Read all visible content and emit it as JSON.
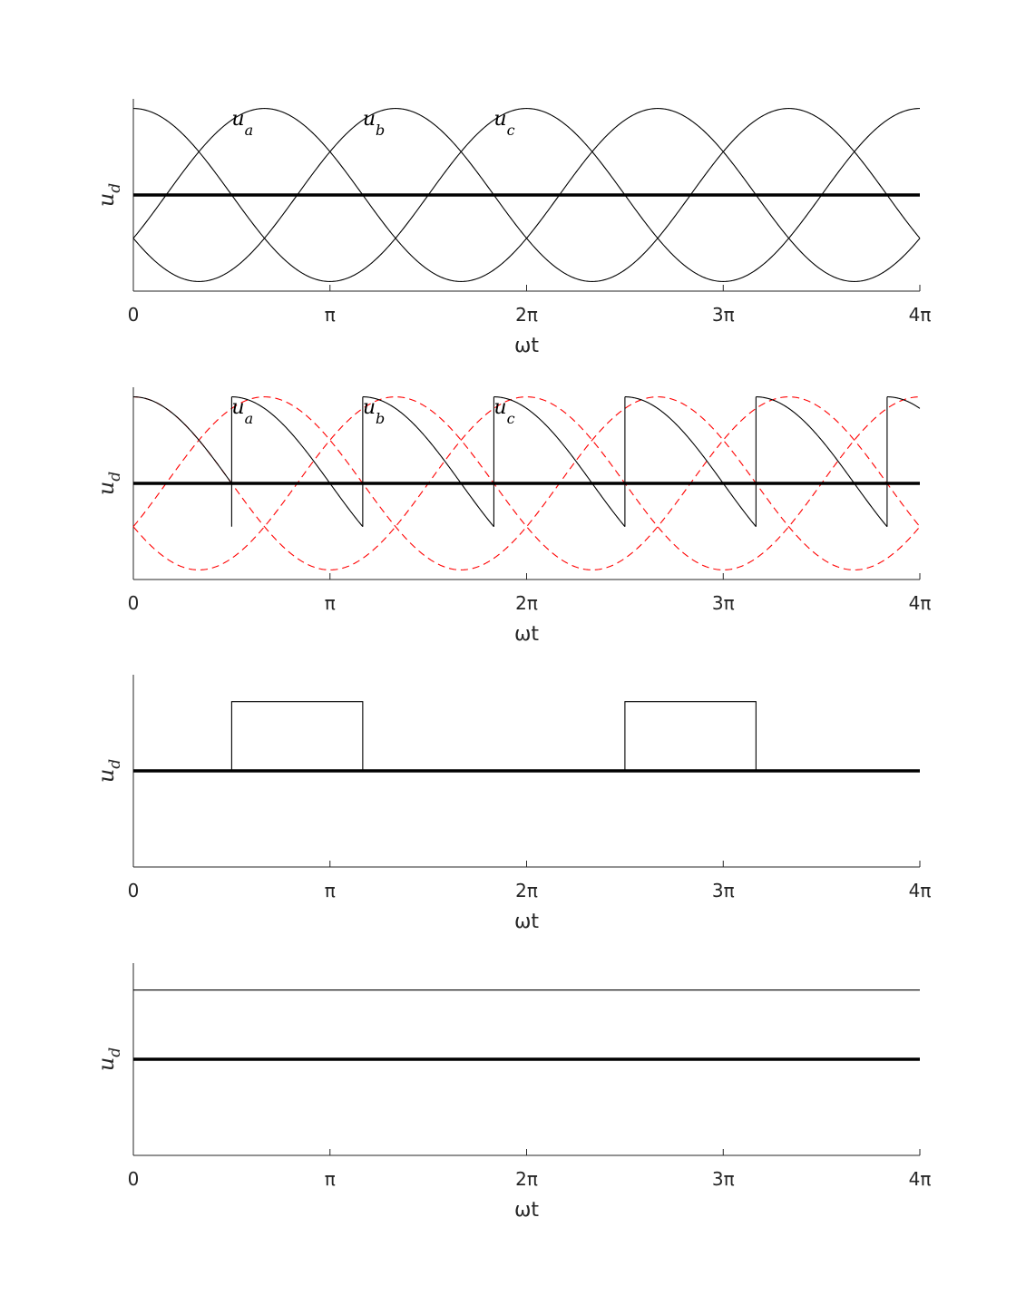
{
  "chart_data": [
    {
      "type": "line",
      "xlabel": "ωt",
      "ylabel": {
        "main": "u",
        "sub": "d"
      },
      "xlim": [
        0,
        12.566
      ],
      "ylim": [
        -1,
        1
      ],
      "x_ticks": [
        "0",
        "π",
        "2π",
        "3π",
        "4π"
      ],
      "x_tick_values": [
        0,
        3.1416,
        6.2832,
        9.4248,
        12.566
      ],
      "series": [
        {
          "name": "u_a",
          "kind": "sine",
          "amplitude": 0.9,
          "phase_deg": 0,
          "color": "#000000",
          "style": "solid"
        },
        {
          "name": "u_b",
          "kind": "sine",
          "amplitude": 0.9,
          "phase_deg": -120,
          "color": "#000000",
          "style": "solid"
        },
        {
          "name": "u_c",
          "kind": "sine",
          "amplitude": 0.9,
          "phase_deg": 120,
          "color": "#000000",
          "style": "solid"
        },
        {
          "kind": "zero",
          "color": "#000000",
          "style": "bold"
        }
      ],
      "annotations": [
        {
          "main": "u",
          "sub": "a",
          "x": 1.571
        },
        {
          "main": "u",
          "sub": "b",
          "x": 3.665
        },
        {
          "main": "u",
          "sub": "c",
          "x": 5.76
        }
      ]
    },
    {
      "type": "line",
      "xlabel": "ωt",
      "ylabel": {
        "main": "u",
        "sub": "d"
      },
      "xlim": [
        0,
        12.566
      ],
      "ylim": [
        -1,
        1
      ],
      "x_ticks": [
        "0",
        "π",
        "2π",
        "3π",
        "4π"
      ],
      "x_tick_values": [
        0,
        3.1416,
        6.2832,
        9.4248,
        12.566
      ],
      "series": [
        {
          "kind": "phase_sines",
          "amplitude": 0.9,
          "phases_deg": [
            0,
            -120,
            120
          ],
          "color": "#ff0000",
          "style": "dashed"
        },
        {
          "kind": "sawtooth",
          "amplitude": 0.9,
          "switch_points": [
            1.571,
            3.665,
            5.76,
            7.854,
            9.948,
            12.043
          ],
          "color": "#000000",
          "style": "solid"
        },
        {
          "kind": "zero",
          "color": "#000000",
          "style": "bold"
        }
      ],
      "annotations": [
        {
          "main": "u",
          "sub": "a",
          "x": 1.571
        },
        {
          "main": "u",
          "sub": "b",
          "x": 3.665
        },
        {
          "main": "u",
          "sub": "c",
          "x": 5.76
        }
      ]
    },
    {
      "type": "line",
      "xlabel": "ωt",
      "ylabel": {
        "main": "u",
        "sub": "d"
      },
      "xlim": [
        0,
        12.566
      ],
      "ylim": [
        -1,
        1
      ],
      "x_ticks": [
        "0",
        "π",
        "2π",
        "3π",
        "4π"
      ],
      "x_tick_values": [
        0,
        3.1416,
        6.2832,
        9.4248,
        12.566
      ],
      "series": [
        {
          "kind": "pulses",
          "level": 0.72,
          "intervals": [
            [
              1.571,
              3.665
            ],
            [
              7.854,
              9.948
            ]
          ],
          "color": "#000000",
          "style": "solid"
        },
        {
          "kind": "zero",
          "color": "#000000",
          "style": "bold"
        }
      ],
      "annotations": []
    },
    {
      "type": "line",
      "xlabel": "ωt",
      "ylabel": {
        "main": "u",
        "sub": "d"
      },
      "xlim": [
        0,
        12.566
      ],
      "ylim": [
        -1,
        1
      ],
      "x_ticks": [
        "0",
        "π",
        "2π",
        "3π",
        "4π"
      ],
      "x_tick_values": [
        0,
        3.1416,
        6.2832,
        9.4248,
        12.566
      ],
      "series": [
        {
          "kind": "constant",
          "level": 0.72,
          "color": "#000000",
          "style": "solid"
        },
        {
          "kind": "zero",
          "color": "#000000",
          "style": "bold"
        }
      ],
      "annotations": []
    }
  ]
}
